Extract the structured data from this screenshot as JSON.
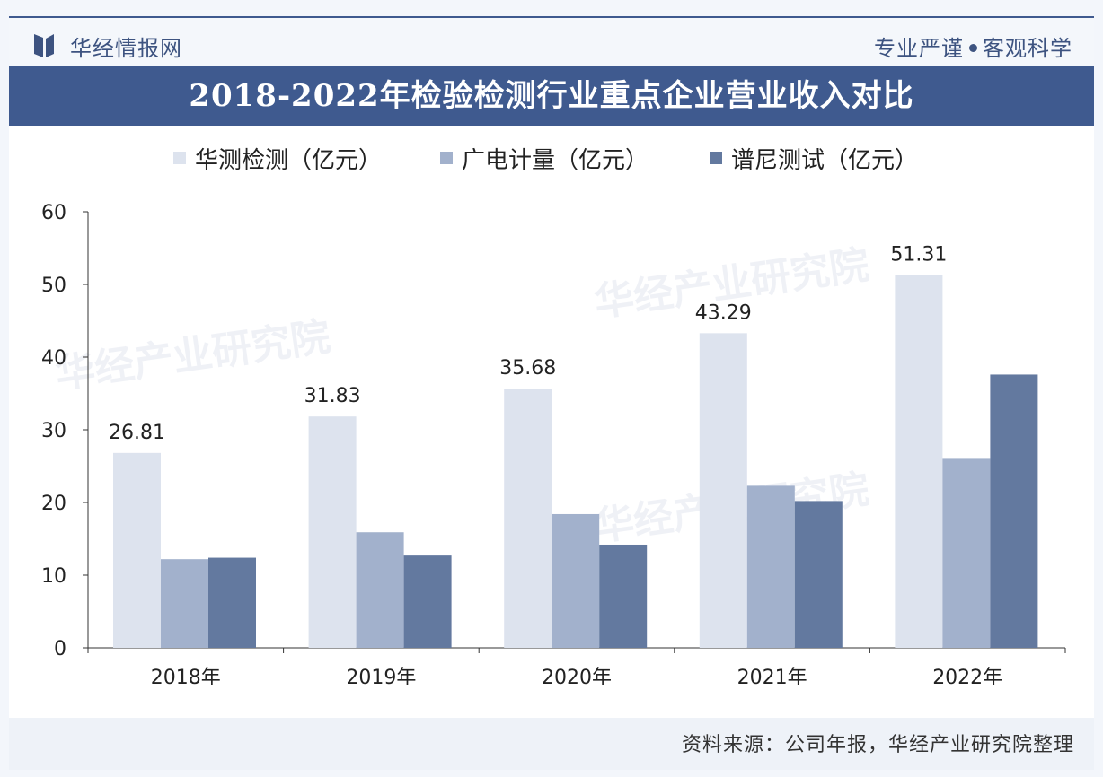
{
  "header": {
    "brand": "华经情报网",
    "slogan_left": "专业严谨",
    "slogan_right": "客观科学"
  },
  "footer": {
    "source": "资料来源：公司年报，华经产业研究院整理"
  },
  "colors": {
    "series1": "#dde3ee",
    "series2": "#a2b1cc",
    "series3": "#63799f",
    "axis": "#333333",
    "title_bg": "#3f5a8f"
  },
  "chart_data": {
    "type": "bar",
    "title": "2018-2022年检验检测行业重点企业营业收入对比",
    "categories": [
      "2018年",
      "2019年",
      "2020年",
      "2021年",
      "2022年"
    ],
    "series": [
      {
        "name": "华测检测（亿元）",
        "values": [
          26.81,
          31.83,
          35.68,
          43.29,
          51.31
        ],
        "labels": [
          "26.81",
          "31.83",
          "35.68",
          "43.29",
          "51.31"
        ]
      },
      {
        "name": "广电计量（亿元）",
        "values": [
          12.2,
          15.9,
          18.4,
          22.3,
          26.0
        ]
      },
      {
        "name": "谱尼测试（亿元）",
        "values": [
          12.4,
          12.7,
          14.2,
          20.2,
          37.6
        ]
      }
    ],
    "ylim": [
      0,
      60
    ],
    "yticks": [
      "0",
      "10",
      "20",
      "30",
      "40",
      "50",
      "60"
    ],
    "legend": "top",
    "grid": false
  }
}
